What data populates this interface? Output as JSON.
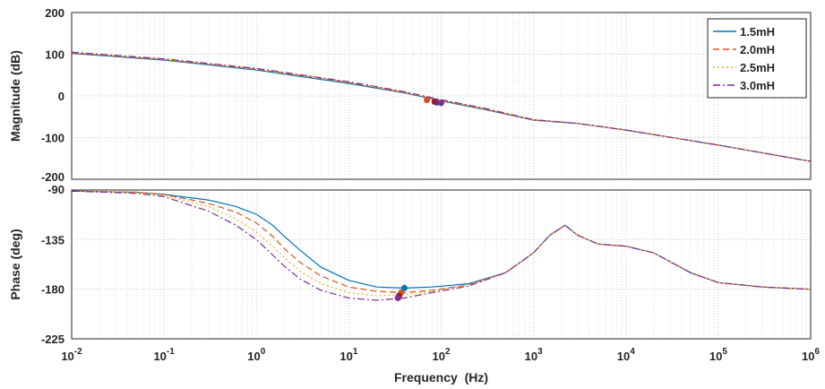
{
  "chart_data": [
    {
      "type": "line",
      "panel": "magnitude",
      "xlabel": "",
      "ylabel": "Magnitude (dB)",
      "xscale": "log",
      "xlim": [
        0.01,
        1000000
      ],
      "ylim": [
        -200,
        200
      ],
      "yticks": [
        "-200",
        "-100",
        "0",
        "100",
        "200"
      ],
      "grid": true,
      "legend": "top-right",
      "series": [
        {
          "name": "1.5mH",
          "color": "#0072bd",
          "dash": "solid",
          "x": [
            0.01,
            0.1,
            1,
            10,
            40,
            100,
            300,
            1000,
            3000,
            10000,
            100000,
            1000000
          ],
          "y": [
            102,
            86,
            62,
            30,
            7,
            -12,
            -33,
            -58,
            -66,
            -82,
            -118,
            -157
          ],
          "marker": {
            "x": 90,
            "y": -16,
            "color": "#0072bd"
          }
        },
        {
          "name": "2.0mH",
          "color": "#d95319",
          "dash": "dashed",
          "x": [
            0.01,
            0.1,
            1,
            10,
            40,
            100,
            300,
            1000,
            3000,
            10000,
            100000,
            1000000
          ],
          "y": [
            103,
            87,
            64,
            32,
            8,
            -11,
            -32,
            -58,
            -66,
            -82,
            -118,
            -157
          ],
          "marker": {
            "x": 70,
            "y": -10,
            "color": "#d95319"
          }
        },
        {
          "name": "2.5mH",
          "color": "#edb120",
          "dash": "dotted",
          "x": [
            0.01,
            0.1,
            1,
            10,
            40,
            100,
            300,
            1000,
            3000,
            10000,
            100000,
            1000000
          ],
          "y": [
            104,
            88,
            65,
            33,
            9,
            -10,
            -31,
            -57,
            -66,
            -82,
            -118,
            -157
          ],
          "marker": {
            "x": 85,
            "y": -14,
            "color": "#a2142f"
          }
        },
        {
          "name": "3.0mH",
          "color": "#7e2f8e",
          "dash": "dashdot",
          "x": [
            0.01,
            0.1,
            1,
            10,
            40,
            100,
            300,
            1000,
            3000,
            10000,
            100000,
            1000000
          ],
          "y": [
            105,
            89,
            66,
            34,
            10,
            -9,
            -30,
            -57,
            -66,
            -82,
            -118,
            -157
          ],
          "marker": {
            "x": 100,
            "y": -17,
            "color": "#7e2f8e"
          }
        }
      ]
    },
    {
      "type": "line",
      "panel": "phase",
      "xlabel": "Frequency  (Hz)",
      "ylabel": "Phase (deg)",
      "xscale": "log",
      "xlim": [
        0.01,
        1000000
      ],
      "ylim": [
        -225,
        -90
      ],
      "yticks": [
        "-225",
        "-180",
        "-135",
        "-90"
      ],
      "xticks": [
        {
          "base": "10",
          "exp": "-2"
        },
        {
          "base": "10",
          "exp": "-1"
        },
        {
          "base": "10",
          "exp": "0"
        },
        {
          "base": "10",
          "exp": "1"
        },
        {
          "base": "10",
          "exp": "2"
        },
        {
          "base": "10",
          "exp": "3"
        },
        {
          "base": "10",
          "exp": "4"
        },
        {
          "base": "10",
          "exp": "5"
        },
        {
          "base": "10",
          "exp": "6"
        }
      ],
      "grid": true,
      "series": [
        {
          "name": "1.5mH",
          "color": "#0072bd",
          "dash": "solid",
          "x": [
            0.01,
            0.05,
            0.1,
            0.3,
            0.6,
            1,
            1.5,
            2,
            3,
            5,
            10,
            20,
            40,
            80,
            200,
            500,
            1000,
            1500,
            2200,
            3000,
            5000,
            10000,
            20000,
            50000,
            100000,
            300000,
            1000000
          ],
          "y": [
            -91,
            -92,
            -94,
            -99,
            -105,
            -112,
            -122,
            -132,
            -145,
            -160,
            -172,
            -178,
            -179,
            -178,
            -175,
            -165,
            -147,
            -131,
            -122,
            -131,
            -139,
            -141,
            -147,
            -165,
            -174,
            -178,
            -180
          ],
          "marker": {
            "x": 40,
            "y": -179,
            "color": "#0072bd"
          }
        },
        {
          "name": "2.0mH",
          "color": "#d95319",
          "dash": "dashed",
          "x": [
            0.01,
            0.05,
            0.1,
            0.3,
            0.6,
            1,
            1.5,
            2,
            3,
            5,
            10,
            20,
            40,
            80,
            200,
            500,
            1000,
            1500,
            2200,
            3000,
            5000,
            10000,
            20000,
            50000,
            100000,
            300000,
            1000000
          ],
          "y": [
            -91,
            -92,
            -94,
            -102,
            -110,
            -120,
            -132,
            -143,
            -156,
            -168,
            -178,
            -182,
            -183,
            -181,
            -176,
            -165,
            -147,
            -131,
            -122,
            -131,
            -139,
            -141,
            -147,
            -165,
            -174,
            -178,
            -180
          ],
          "marker": {
            "x": 37,
            "y": -183,
            "color": "#d95319"
          }
        },
        {
          "name": "2.5mH",
          "color": "#edb120",
          "dash": "dotted",
          "x": [
            0.01,
            0.05,
            0.1,
            0.3,
            0.6,
            1,
            1.5,
            2,
            3,
            5,
            10,
            20,
            40,
            80,
            200,
            500,
            1000,
            1500,
            2200,
            3000,
            5000,
            10000,
            20000,
            50000,
            100000,
            300000,
            1000000
          ],
          "y": [
            -91,
            -92,
            -95,
            -105,
            -116,
            -128,
            -141,
            -151,
            -164,
            -175,
            -183,
            -186,
            -185,
            -182,
            -176,
            -165,
            -147,
            -131,
            -122,
            -131,
            -139,
            -141,
            -147,
            -165,
            -174,
            -178,
            -180
          ],
          "marker": {
            "x": 35,
            "y": -186,
            "color": "#a2142f"
          }
        },
        {
          "name": "3.0mH",
          "color": "#7e2f8e",
          "dash": "dashdot",
          "x": [
            0.01,
            0.05,
            0.1,
            0.3,
            0.6,
            1,
            1.5,
            2,
            3,
            5,
            10,
            20,
            40,
            80,
            200,
            500,
            1000,
            1500,
            2200,
            3000,
            5000,
            10000,
            20000,
            50000,
            100000,
            300000,
            1000000
          ],
          "y": [
            -91,
            -93,
            -96,
            -109,
            -122,
            -135,
            -149,
            -159,
            -171,
            -181,
            -188,
            -190,
            -188,
            -183,
            -177,
            -165,
            -147,
            -131,
            -122,
            -131,
            -139,
            -141,
            -147,
            -165,
            -174,
            -178,
            -180
          ],
          "marker": {
            "x": 34,
            "y": -188,
            "color": "#7e2f8e"
          }
        }
      ]
    }
  ]
}
